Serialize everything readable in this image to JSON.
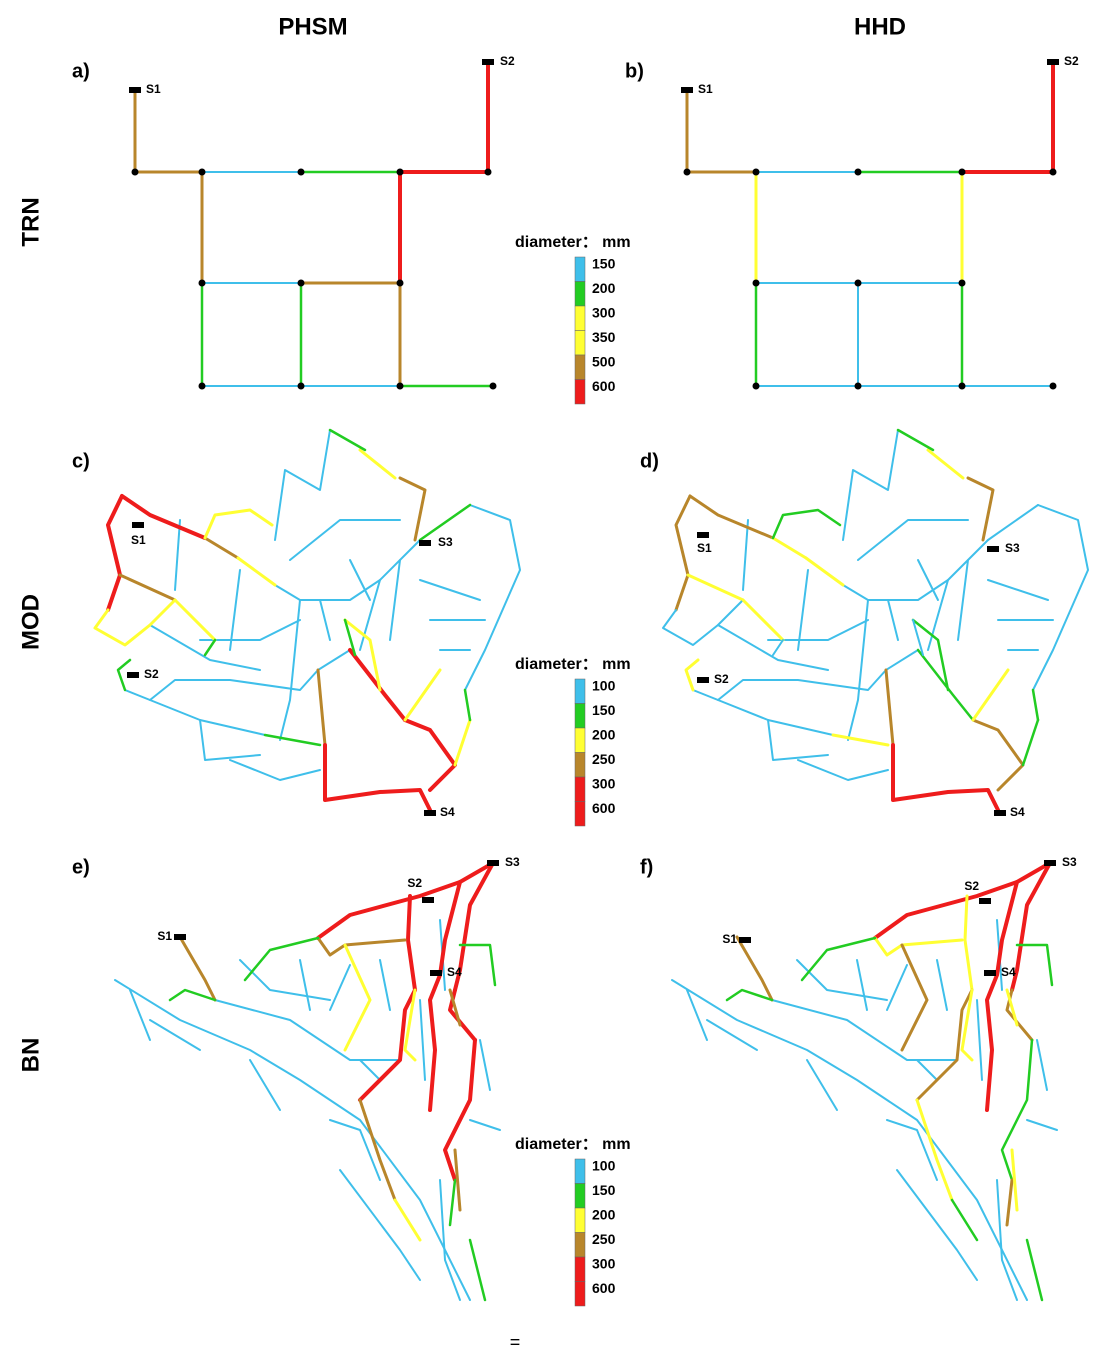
{
  "columns": [
    "PHSM",
    "HHD"
  ],
  "rows": [
    "TRN",
    "MOD",
    "BN"
  ],
  "panels": [
    {
      "label": "a)",
      "sources": [
        "S1",
        "S2"
      ]
    },
    {
      "label": "b)",
      "sources": [
        "S1",
        "S2"
      ]
    },
    {
      "label": "c)",
      "sources": [
        "S1",
        "S2",
        "S3",
        "S4"
      ]
    },
    {
      "label": "d)",
      "sources": [
        "S1",
        "S2",
        "S3",
        "S4"
      ]
    },
    {
      "label": "e)",
      "sources": [
        "S1",
        "S2",
        "S3",
        "S4"
      ]
    },
    {
      "label": "f)",
      "sources": [
        "S1",
        "S2",
        "S3",
        "S4"
      ]
    }
  ],
  "legends": [
    {
      "title": "diameter： mm",
      "items": [
        {
          "value": 150,
          "color": "#3fbfea"
        },
        {
          "value": 200,
          "color": "#22cc22"
        },
        {
          "value": 300,
          "color": "#ffff33"
        },
        {
          "value": 350,
          "color": "#ffff33"
        },
        {
          "value": 500,
          "color": "#b8862b"
        },
        {
          "value": 600,
          "color": "#ee1c1c"
        }
      ]
    },
    {
      "title": "diameter： mm",
      "items": [
        {
          "value": 100,
          "color": "#3fbfea"
        },
        {
          "value": 150,
          "color": "#22cc22"
        },
        {
          "value": 200,
          "color": "#ffff33"
        },
        {
          "value": 250,
          "color": "#b8862b"
        },
        {
          "value": 300,
          "color": "#ee1c1c"
        },
        {
          "value": 600,
          "color": "#ee1c1c"
        }
      ]
    },
    {
      "title": "diameter： mm",
      "items": [
        {
          "value": 100,
          "color": "#3fbfea"
        },
        {
          "value": 150,
          "color": "#22cc22"
        },
        {
          "value": 200,
          "color": "#ffff33"
        },
        {
          "value": 250,
          "color": "#b8862b"
        },
        {
          "value": 300,
          "color": "#ee1c1c"
        },
        {
          "value": 600,
          "color": "#ee1c1c"
        }
      ]
    }
  ],
  "footer": "="
}
